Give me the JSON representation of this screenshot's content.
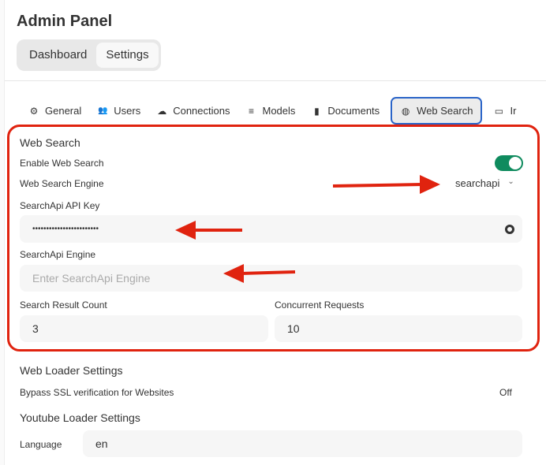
{
  "header": {
    "title": "Admin Panel"
  },
  "segments": [
    {
      "label": "Dashboard",
      "active": false
    },
    {
      "label": "Settings",
      "active": true
    }
  ],
  "tabs": [
    {
      "label": "General",
      "icon": "gear-icon",
      "glyph": "⚙"
    },
    {
      "label": "Users",
      "icon": "users-icon",
      "glyph": "👥"
    },
    {
      "label": "Connections",
      "icon": "cloud-icon",
      "glyph": "☁"
    },
    {
      "label": "Models",
      "icon": "database-icon",
      "glyph": "≡"
    },
    {
      "label": "Documents",
      "icon": "document-icon",
      "glyph": "▮"
    },
    {
      "label": "Web Search",
      "icon": "globe-icon",
      "glyph": "◍",
      "active": true
    },
    {
      "label": "Ir",
      "icon": "monitor-icon",
      "glyph": "▭"
    }
  ],
  "web_search": {
    "heading": "Web Search",
    "enable_label": "Enable Web Search",
    "enabled": true,
    "engine_label": "Web Search Engine",
    "engine_value": "searchapi",
    "api_key_label": "SearchApi API Key",
    "api_key_value": "••••••••••••••••••••••••",
    "engine_field_label": "SearchApi Engine",
    "engine_field_placeholder": "Enter SearchApi Engine",
    "result_count_label": "Search Result Count",
    "result_count_value": "3",
    "concurrent_label": "Concurrent Requests",
    "concurrent_value": "10"
  },
  "web_loader": {
    "heading": "Web Loader Settings",
    "bypass_label": "Bypass SSL verification for Websites",
    "bypass_value": "Off"
  },
  "youtube_loader": {
    "heading": "Youtube Loader Settings",
    "language_label": "Language",
    "language_value": "en"
  },
  "colors": {
    "highlight": "#e0230f",
    "toggle": "#0f8b5e",
    "active_tab_border": "#2a64c8"
  }
}
